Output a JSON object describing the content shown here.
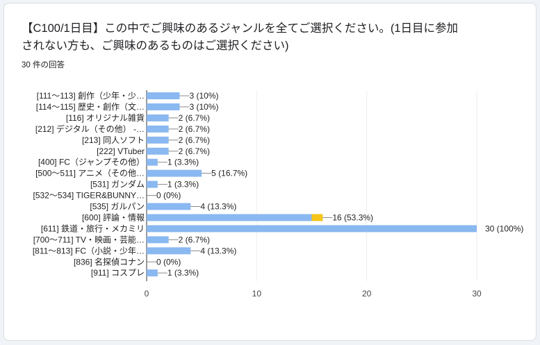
{
  "question": {
    "title": "【C100/1日目】この中でご興味のあるジャンルを全てご選択ください。(1日目に参加されない方も、ご興味のあるものはご選択ください)",
    "response_count": "30 件の回答"
  },
  "colors": {
    "bar": "#8ab8f0",
    "highlight": "#f5c518",
    "grid": "#eeeeee",
    "axis": "#333333"
  },
  "chart_data": {
    "type": "bar",
    "orientation": "horizontal",
    "categories": [
      "[111～113] 創作（少年・少…",
      "[114～115] 歴史・創作（文…",
      "[116] オリジナル雑貨",
      "[212] デジタル（その他） -…",
      "[213] 同人ソフト",
      "[222] VTuber",
      "[400] FC（ジャンプその他）",
      "[500～511] アニメ（その他…",
      "[531] ガンダム",
      "[532～534] TIGER&BUNNY…",
      "[535] ガルパン",
      "[600] 評論・情報",
      "[611] 鉄道・旅行・メカミリ",
      "[700～711] TV・映画・芸能…",
      "[811～813] FC（小説・少年…",
      "[836] 名探偵コナン",
      "[911] コスプレ"
    ],
    "values": [
      3,
      3,
      2,
      2,
      2,
      2,
      1,
      5,
      1,
      0,
      4,
      16,
      30,
      2,
      4,
      0,
      1
    ],
    "data_labels": [
      "3 (10%)",
      "3 (10%)",
      "2 (6.7%)",
      "2 (6.7%)",
      "2 (6.7%)",
      "2 (6.7%)",
      "1 (3.3%)",
      "5 (16.7%)",
      "1 (3.3%)",
      "0 (0%)",
      "4 (13.3%)",
      "16 (53.3%)",
      "30 (100%)",
      "2 (6.7%)",
      "4 (13.3%)",
      "0 (0%)",
      "1 (3.3%)"
    ],
    "highlighted_range": {
      "category": "[600] 評論・情報",
      "from": 15,
      "to": 16
    },
    "xlim": [
      0,
      30
    ],
    "xticks": [
      0,
      10,
      20,
      30
    ],
    "grid": true,
    "legend": "none"
  }
}
